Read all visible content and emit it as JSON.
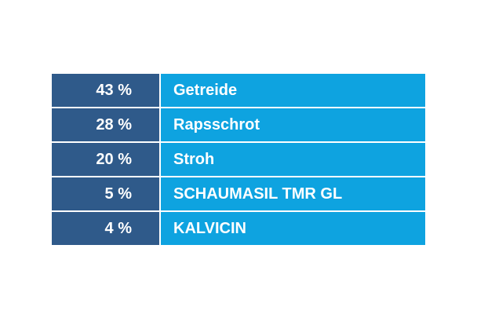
{
  "table": {
    "rows": [
      {
        "percent": "43 %",
        "name": "Getreide"
      },
      {
        "percent": "28 %",
        "name": "Rapsschrot"
      },
      {
        "percent": "20 %",
        "name": "Stroh"
      },
      {
        "percent": "5 %",
        "name": "SCHAUMASIL TMR GL"
      },
      {
        "percent": "4 %",
        "name": "KALVICIN"
      }
    ]
  },
  "colors": {
    "percent_bg": "#2f5a8a",
    "name_bg": "#0ea3e0",
    "text": "#ffffff"
  }
}
